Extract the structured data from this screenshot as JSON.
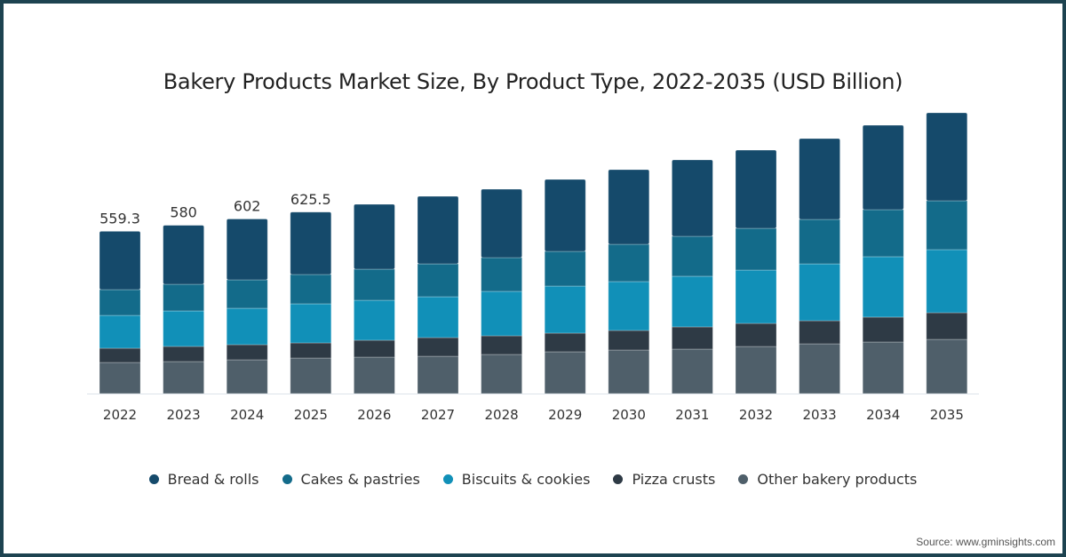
{
  "chart_data": {
    "type": "bar",
    "stacked": true,
    "title": "Bakery Products Market Size, By Product Type, 2022-2035 (USD Billion)",
    "xlabel": "",
    "ylabel": "",
    "ylim": [
      0,
      1000
    ],
    "grid": false,
    "legend_position": "bottom",
    "categories": [
      "2022",
      "2023",
      "2024",
      "2025",
      "2026",
      "2027",
      "2028",
      "2029",
      "2030",
      "2031",
      "2032",
      "2033",
      "2034",
      "2035"
    ],
    "series": [
      {
        "name": "Other bakery products",
        "color": "#4f5f6a",
        "values": [
          107.2,
          110.3,
          116.4,
          122.5,
          125.6,
          128.6,
          134.8,
          144.0,
          150.1,
          153.2,
          162.3,
          171.5,
          177.7,
          186.8
        ]
      },
      {
        "name": "Pizza crusts",
        "color": "#2e3a45",
        "values": [
          49.0,
          52.1,
          52.1,
          52.1,
          58.2,
          64.3,
          64.3,
          64.3,
          67.4,
          76.6,
          79.6,
          79.6,
          85.8,
          91.9
        ]
      },
      {
        "name": "Biscuits & cookies",
        "color": "#1190b8",
        "values": [
          113.3,
          122.5,
          125.6,
          134.8,
          137.8,
          140.9,
          153.2,
          162.3,
          168.5,
          174.6,
          183.8,
          196.0,
          208.3,
          217.5
        ]
      },
      {
        "name": "Cakes & pastries",
        "color": "#136b8a",
        "values": [
          88.8,
          91.9,
          98.0,
          101.1,
          107.2,
          113.3,
          116.4,
          119.5,
          128.6,
          137.8,
          144.0,
          153.2,
          162.3,
          168.5
        ]
      },
      {
        "name": "Bread & rolls",
        "color": "#154a6b",
        "values": [
          201.0,
          203.2,
          209.9,
          215.0,
          223.6,
          232.8,
          235.9,
          248.1,
          257.3,
          263.4,
          269.5,
          278.7,
          291.0,
          303.2
        ]
      }
    ],
    "total_labels": [
      "559.3",
      "580",
      "602",
      "625.5",
      "",
      "",
      "",
      "",
      "",
      "",
      "",
      "",
      "",
      ""
    ],
    "legend_order": [
      "Bread & rolls",
      "Cakes & pastries",
      "Biscuits & cookies",
      "Pizza crusts",
      "Other bakery products"
    ]
  },
  "source": "Source: www.gminsights.com"
}
